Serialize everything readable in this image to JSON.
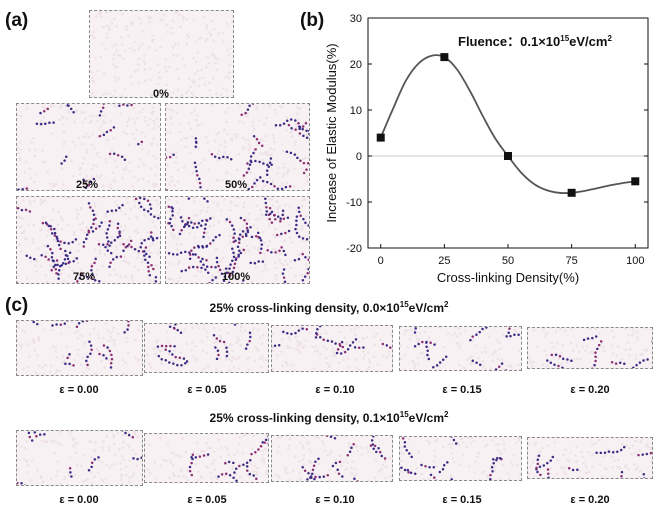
{
  "panels": {
    "a": {
      "letter": "(a)",
      "boxes": [
        {
          "label": "0%",
          "density": 0
        },
        {
          "label": "25%",
          "density": 25
        },
        {
          "label": "50%",
          "density": 50
        },
        {
          "label": "75%",
          "density": 75
        },
        {
          "label": "100%",
          "density": 100
        }
      ]
    },
    "b": {
      "letter": "(b)"
    },
    "c": {
      "letter": "(c)",
      "rows": [
        {
          "title_prefix": "25% cross-linking density, 0.0×10",
          "title_sup": "15",
          "title_suffix": "eV/cm",
          "title_sup2": "2",
          "strains": [
            "ε = 0.00",
            "ε = 0.05",
            "ε = 0.10",
            "ε = 0.15",
            "ε = 0.20"
          ]
        },
        {
          "title_prefix": "25% cross-linking density, 0.1×10",
          "title_sup": "15",
          "title_suffix": "eV/cm",
          "title_sup2": "2",
          "strains": [
            "ε = 0.00",
            "ε = 0.05",
            "ε = 0.10",
            "ε = 0.15",
            "ε = 0.20"
          ]
        }
      ]
    }
  },
  "colors": {
    "background_box": "#f7f1f3",
    "dot_primary": "#3b2d86",
    "dot_secondary": "#8b2f74",
    "curve": "#555555",
    "marker": "#111111",
    "zero_line": "#bbbbbb"
  },
  "chart_data": {
    "type": "scatter",
    "annotation": "Fluence：0.1×10",
    "annotation_sup": "15",
    "annotation_unit": "eV/cm",
    "annotation_sup2": "2",
    "xlabel": "Cross-linking Density(%)",
    "ylabel": "Increase of Elastic Modulus(%)",
    "xlim": [
      -5,
      105
    ],
    "ylim": [
      -20,
      30
    ],
    "xticks": [
      0,
      25,
      50,
      75,
      100
    ],
    "yticks": [
      -20,
      -10,
      0,
      10,
      20,
      30
    ],
    "grid": false,
    "series": [
      {
        "x": [
          0,
          25,
          50,
          75,
          100
        ],
        "y": [
          4,
          21.5,
          0,
          -8,
          -5.5
        ]
      }
    ],
    "fit_curve": {
      "x": [
        0,
        5,
        10,
        15,
        20,
        25,
        30,
        35,
        40,
        45,
        50,
        55,
        60,
        65,
        70,
        75,
        80,
        85,
        90,
        95,
        100
      ],
      "y": [
        4,
        10.5,
        16.5,
        20.2,
        21.8,
        21.5,
        18.8,
        14.2,
        8.8,
        3.8,
        0,
        -3.5,
        -6.0,
        -7.4,
        -8.0,
        -8.0,
        -7.6,
        -7.0,
        -6.4,
        -5.9,
        -5.5
      ]
    }
  }
}
